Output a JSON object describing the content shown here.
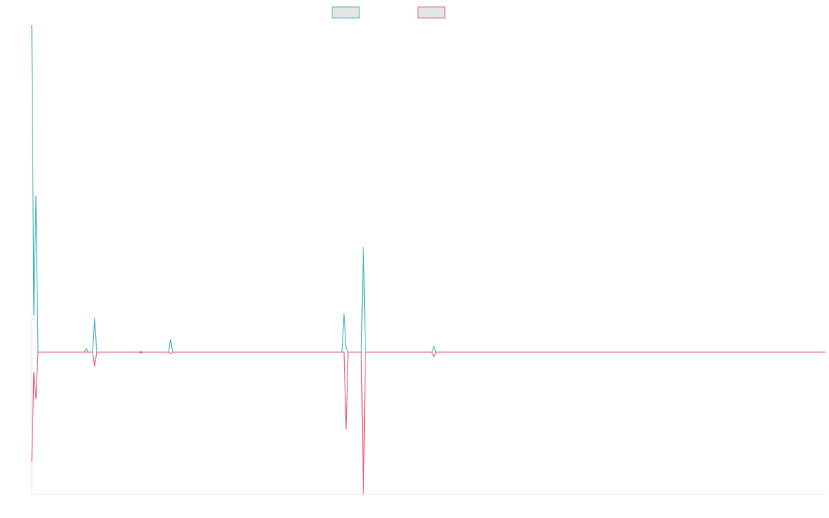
{
  "chart_data": {
    "type": "line",
    "x": [
      0,
      3,
      6,
      9,
      76,
      79,
      82,
      88,
      91,
      94,
      155,
      158,
      161,
      198,
      201,
      204,
      449,
      452,
      455,
      458,
      477,
      480,
      483,
      579,
      582,
      585,
      1149
    ],
    "xlim": [
      0,
      1149
    ],
    "ylim": [
      -100,
      230
    ],
    "series": [
      {
        "color": "#3fb3b8",
        "values": [
          230,
          26,
          110,
          0,
          0,
          2.4,
          0,
          0,
          24,
          0,
          0,
          0.5,
          0,
          0,
          9,
          0,
          0,
          27,
          2.4,
          0,
          0,
          74,
          0,
          0,
          4,
          0,
          0
        ]
      },
      {
        "color": "#e8587a",
        "values": [
          -77,
          -14,
          -33,
          0,
          0,
          0,
          0,
          0,
          -10,
          0,
          0,
          -0.5,
          0,
          0,
          -1,
          0,
          0,
          0,
          -54,
          0,
          0,
          -100,
          0,
          0,
          -3,
          0,
          0
        ]
      }
    ]
  }
}
